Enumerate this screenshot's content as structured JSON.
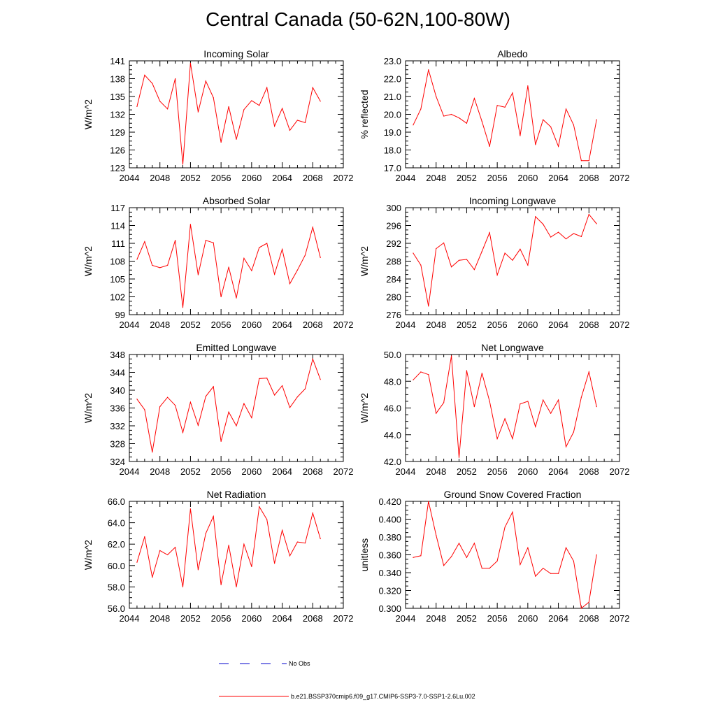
{
  "title": "Central Canada (50-62N,100-80W)",
  "colors": {
    "model": "#ff0000",
    "obs": "#0000cc",
    "axis": "#000000"
  },
  "legend": {
    "obs_label": "No Obs",
    "model_label": "b.e21.BSSP370cmip6.f09_g17.CMIP6-SSP3-7.0-SSP1-2.6Lu.002"
  },
  "chart_data": [
    {
      "type": "line",
      "title": "Incoming Solar",
      "xlabel": "",
      "ylabel": "W/m^2",
      "xlim": [
        2044,
        2072
      ],
      "ylim": [
        123,
        141
      ],
      "xticks": [
        "2044",
        "2048",
        "2052",
        "2056",
        "2060",
        "2064",
        "2068",
        "2072"
      ],
      "yticks": [
        "123",
        "126",
        "129",
        "132",
        "135",
        "138",
        "141"
      ],
      "x": [
        2045,
        2046,
        2047,
        2048,
        2049,
        2050,
        2051,
        2052,
        2053,
        2054,
        2055,
        2056,
        2057,
        2058,
        2059,
        2060,
        2061,
        2062,
        2063,
        2064,
        2065,
        2066,
        2067,
        2068,
        2069
      ],
      "series": [
        {
          "values": [
            133.3,
            138.6,
            137.2,
            134.2,
            132.9,
            138.0,
            123.6,
            140.6,
            132.4,
            137.6,
            134.8,
            127.3,
            133.3,
            127.8,
            132.8,
            134.3,
            133.5,
            136.5,
            130.0,
            133.0,
            129.3,
            131.0,
            130.6,
            136.5,
            134.2
          ]
        }
      ]
    },
    {
      "type": "line",
      "title": "Albedo",
      "xlabel": "",
      "ylabel": "% reflected",
      "xlim": [
        2044,
        2072
      ],
      "ylim": [
        17.0,
        23.0
      ],
      "xticks": [
        "2044",
        "2048",
        "2052",
        "2056",
        "2060",
        "2064",
        "2068",
        "2072"
      ],
      "yticks": [
        "17.0",
        "18.0",
        "19.0",
        "20.0",
        "21.0",
        "22.0",
        "23.0"
      ],
      "x": [
        2045,
        2046,
        2047,
        2048,
        2049,
        2050,
        2051,
        2052,
        2053,
        2054,
        2055,
        2056,
        2057,
        2058,
        2059,
        2060,
        2061,
        2062,
        2063,
        2064,
        2065,
        2066,
        2067,
        2068,
        2069
      ],
      "series": [
        {
          "values": [
            19.4,
            20.3,
            22.5,
            21.0,
            19.9,
            20.0,
            19.8,
            19.5,
            20.9,
            19.6,
            18.2,
            20.5,
            20.4,
            21.2,
            18.8,
            21.6,
            18.3,
            19.7,
            19.3,
            18.2,
            20.3,
            19.4,
            17.4,
            17.4,
            19.7
          ]
        }
      ]
    },
    {
      "type": "line",
      "title": "Absorbed Solar",
      "xlabel": "",
      "ylabel": "W/m^2",
      "xlim": [
        2044,
        2072
      ],
      "ylim": [
        99,
        117
      ],
      "xticks": [
        "2044",
        "2048",
        "2052",
        "2056",
        "2060",
        "2064",
        "2068",
        "2072"
      ],
      "yticks": [
        "99",
        "102",
        "105",
        "108",
        "111",
        "114",
        "117"
      ],
      "x": [
        2045,
        2046,
        2047,
        2048,
        2049,
        2050,
        2051,
        2052,
        2053,
        2054,
        2055,
        2056,
        2057,
        2058,
        2059,
        2060,
        2061,
        2062,
        2063,
        2064,
        2065,
        2066,
        2067,
        2068,
        2069
      ],
      "series": [
        {
          "values": [
            108.3,
            111.3,
            107.3,
            106.9,
            107.3,
            111.5,
            100.2,
            114.2,
            105.7,
            111.5,
            111.1,
            102.0,
            107.0,
            101.8,
            108.5,
            106.4,
            110.3,
            111.0,
            105.8,
            110.0,
            104.2,
            106.5,
            109.0,
            113.7,
            108.6
          ]
        }
      ]
    },
    {
      "type": "line",
      "title": "Incoming Longwave",
      "xlabel": "",
      "ylabel": "W/m^2",
      "xlim": [
        2044,
        2072
      ],
      "ylim": [
        276,
        300
      ],
      "xticks": [
        "2044",
        "2048",
        "2052",
        "2056",
        "2060",
        "2064",
        "2068",
        "2072"
      ],
      "yticks": [
        "276",
        "280",
        "284",
        "288",
        "292",
        "296",
        "300"
      ],
      "x": [
        2045,
        2046,
        2047,
        2048,
        2049,
        2050,
        2051,
        2052,
        2053,
        2054,
        2055,
        2056,
        2057,
        2058,
        2059,
        2060,
        2061,
        2062,
        2063,
        2064,
        2065,
        2066,
        2067,
        2068,
        2069
      ],
      "series": [
        {
          "values": [
            289.8,
            287.1,
            277.9,
            290.8,
            292.1,
            286.7,
            288.2,
            288.4,
            286.1,
            290.2,
            294.4,
            284.9,
            289.8,
            288.2,
            290.7,
            287.1,
            298.0,
            296.3,
            293.4,
            294.5,
            293.0,
            294.2,
            293.5,
            298.5,
            296.4
          ]
        }
      ]
    },
    {
      "type": "line",
      "title": "Emitted Longwave",
      "xlabel": "",
      "ylabel": "W/m^2",
      "xlim": [
        2044,
        2072
      ],
      "ylim": [
        324,
        348
      ],
      "xticks": [
        "2044",
        "2048",
        "2052",
        "2056",
        "2060",
        "2064",
        "2068",
        "2072"
      ],
      "yticks": [
        "324",
        "328",
        "332",
        "336",
        "340",
        "344",
        "348"
      ],
      "x": [
        2045,
        2046,
        2047,
        2048,
        2049,
        2050,
        2051,
        2052,
        2053,
        2054,
        2055,
        2056,
        2057,
        2058,
        2059,
        2060,
        2061,
        2062,
        2063,
        2064,
        2065,
        2066,
        2067,
        2068,
        2069
      ],
      "series": [
        {
          "values": [
            338.0,
            335.6,
            326.1,
            336.3,
            338.4,
            336.6,
            330.5,
            337.3,
            332.1,
            338.6,
            340.8,
            328.5,
            335.1,
            332.0,
            337.0,
            333.8,
            342.6,
            342.7,
            338.9,
            341.0,
            336.1,
            338.5,
            340.3,
            347.0,
            342.4
          ]
        }
      ]
    },
    {
      "type": "line",
      "title": "Net Longwave",
      "xlabel": "",
      "ylabel": "W/m^2",
      "xlim": [
        2044,
        2072
      ],
      "ylim": [
        42.0,
        50.0
      ],
      "xticks": [
        "2044",
        "2048",
        "2052",
        "2056",
        "2060",
        "2064",
        "2068",
        "2072"
      ],
      "yticks": [
        "42.0",
        "44.0",
        "46.0",
        "48.0",
        "50.0"
      ],
      "x": [
        2045,
        2046,
        2047,
        2048,
        2049,
        2050,
        2051,
        2052,
        2053,
        2054,
        2055,
        2056,
        2057,
        2058,
        2059,
        2060,
        2061,
        2062,
        2063,
        2064,
        2065,
        2066,
        2067,
        2068,
        2069
      ],
      "series": [
        {
          "values": [
            48.1,
            48.7,
            48.5,
            45.6,
            46.4,
            49.9,
            42.3,
            48.8,
            46.1,
            48.6,
            46.5,
            43.7,
            45.2,
            43.7,
            46.3,
            46.5,
            44.6,
            46.6,
            45.6,
            46.6,
            43.1,
            44.2,
            46.8,
            48.7,
            46.1
          ]
        }
      ]
    },
    {
      "type": "line",
      "title": "Net Radiation",
      "xlabel": "",
      "ylabel": "W/m^2",
      "xlim": [
        2044,
        2072
      ],
      "ylim": [
        56.0,
        66.0
      ],
      "xticks": [
        "2044",
        "2048",
        "2052",
        "2056",
        "2060",
        "2064",
        "2068",
        "2072"
      ],
      "yticks": [
        "56.0",
        "58.0",
        "60.0",
        "62.0",
        "64.0",
        "66.0"
      ],
      "x": [
        2045,
        2046,
        2047,
        2048,
        2049,
        2050,
        2051,
        2052,
        2053,
        2054,
        2055,
        2056,
        2057,
        2058,
        2059,
        2060,
        2061,
        2062,
        2063,
        2064,
        2065,
        2066,
        2067,
        2068,
        2069
      ],
      "series": [
        {
          "values": [
            60.3,
            62.7,
            58.9,
            61.4,
            61.0,
            61.7,
            58.0,
            65.3,
            59.6,
            63.0,
            64.6,
            58.2,
            61.9,
            58.0,
            62.0,
            59.9,
            65.5,
            64.3,
            60.2,
            63.3,
            60.9,
            62.2,
            62.1,
            64.9,
            62.5
          ]
        }
      ]
    },
    {
      "type": "line",
      "title": "Ground Snow Covered Fraction",
      "xlabel": "",
      "ylabel": "unitless",
      "xlim": [
        2044,
        2072
      ],
      "ylim": [
        0.3,
        0.42
      ],
      "xticks": [
        "2044",
        "2048",
        "2052",
        "2056",
        "2060",
        "2064",
        "2068",
        "2072"
      ],
      "yticks": [
        "0.300",
        "0.320",
        "0.340",
        "0.360",
        "0.380",
        "0.400",
        "0.420"
      ],
      "x": [
        2045,
        2046,
        2047,
        2048,
        2049,
        2050,
        2051,
        2052,
        2053,
        2054,
        2055,
        2056,
        2057,
        2058,
        2059,
        2060,
        2061,
        2062,
        2063,
        2064,
        2065,
        2066,
        2067,
        2068,
        2069
      ],
      "series": [
        {
          "values": [
            0.357,
            0.359,
            0.42,
            0.382,
            0.348,
            0.358,
            0.373,
            0.357,
            0.373,
            0.345,
            0.345,
            0.353,
            0.391,
            0.408,
            0.349,
            0.368,
            0.336,
            0.345,
            0.339,
            0.339,
            0.368,
            0.353,
            0.3,
            0.307,
            0.36
          ]
        }
      ]
    }
  ]
}
